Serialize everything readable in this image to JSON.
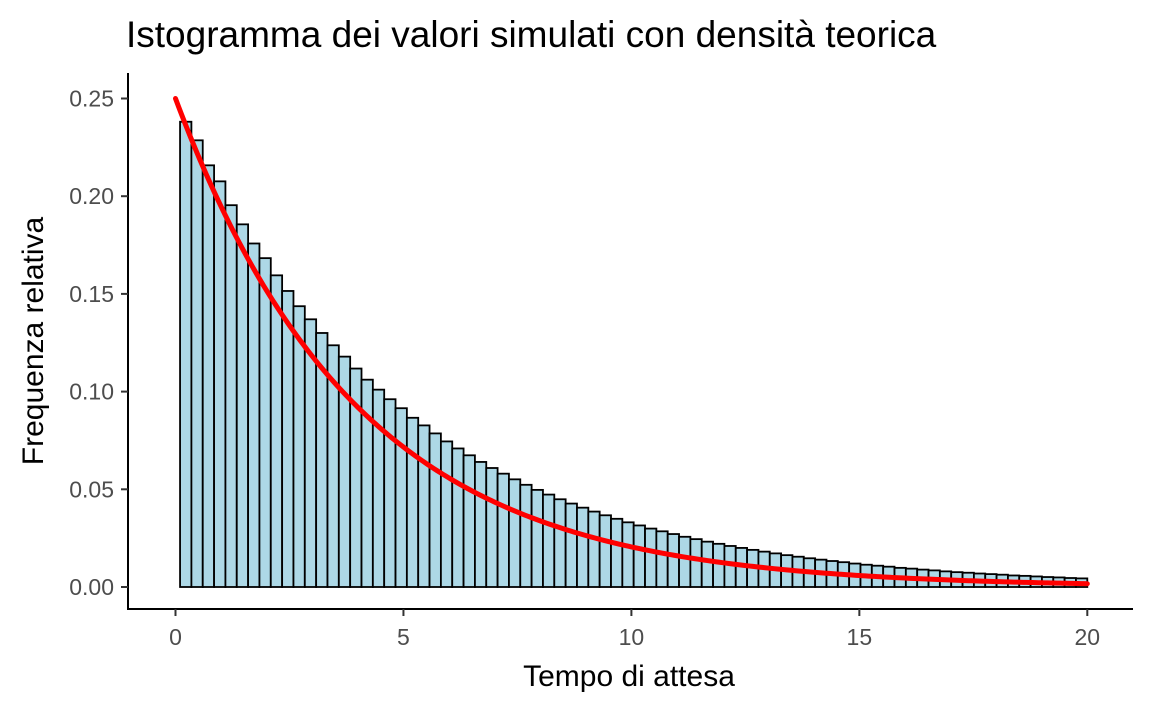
{
  "chart_data": {
    "type": "bar",
    "title": "Istogramma dei valori simulati con densità teorica",
    "xlabel": "Tempo di attesa",
    "ylabel": "Frequenza relativa",
    "xlim": [
      0,
      20
    ],
    "ylim": [
      0,
      0.25
    ],
    "x_ticks": [
      "0",
      "5",
      "10",
      "15",
      "20"
    ],
    "y_ticks": [
      "0.00",
      "0.05",
      "0.10",
      "0.15",
      "0.20",
      "0.25"
    ],
    "bin_start": 0.1,
    "bin_end": 20,
    "bin_count": 80,
    "bins": [
      0.2381,
      0.2286,
      0.2158,
      0.2076,
      0.1954,
      0.1856,
      0.1758,
      0.1683,
      0.1595,
      0.1515,
      0.1437,
      0.137,
      0.13,
      0.1237,
      0.1179,
      0.1118,
      0.1061,
      0.101,
      0.0961,
      0.0915,
      0.0866,
      0.0827,
      0.0786,
      0.0745,
      0.0709,
      0.0674,
      0.064,
      0.0609,
      0.058,
      0.0551,
      0.0523,
      0.0497,
      0.0473,
      0.0449,
      0.0427,
      0.0406,
      0.0386,
      0.0367,
      0.0349,
      0.0331,
      0.0315,
      0.0299,
      0.0285,
      0.0271,
      0.0257,
      0.0245,
      0.0232,
      0.0221,
      0.021,
      0.02,
      0.019,
      0.0181,
      0.0172,
      0.0163,
      0.0155,
      0.0147,
      0.014,
      0.0133,
      0.0127,
      0.012,
      0.0114,
      0.0109,
      0.0104,
      0.0098,
      0.0094,
      0.0089,
      0.0085,
      0.008,
      0.0076,
      0.0073,
      0.0069,
      0.0066,
      0.0063,
      0.0059,
      0.0057,
      0.0054,
      0.0051,
      0.0049,
      0.0046,
      0.0044
    ],
    "bar_fill": "#add8e6",
    "bar_stroke": "#000000",
    "density_curve": {
      "distribution": "exponential",
      "rate": 0.25,
      "x_from": 0,
      "x_to": 20,
      "color": "#ff0000"
    },
    "grid": false,
    "legend": "none"
  }
}
